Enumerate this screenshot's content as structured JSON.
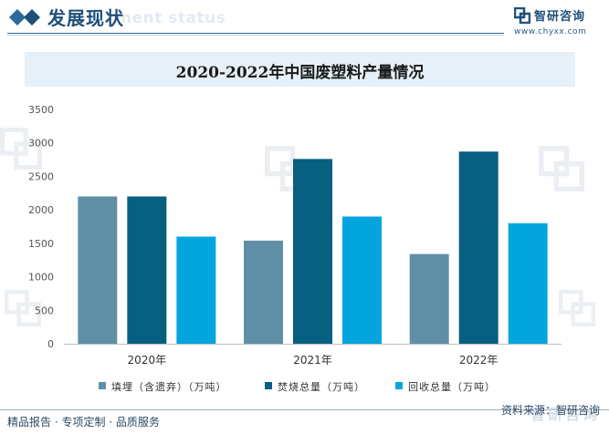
{
  "header": {
    "title": "发展现状",
    "watermark_text": "nent status"
  },
  "brand": {
    "name": "智研咨询",
    "url": "www.chyxx.com",
    "color": "#1f4f7a"
  },
  "colors": {
    "series_1": "#5f8fa6",
    "series_2": "#075f81",
    "series_3": "#04a5df",
    "title_bg": "#e5f0f8",
    "header_accent": "#1f4f7a"
  },
  "chart_data": {
    "type": "bar",
    "title": "2020-2022年中国废塑料产量情况",
    "categories": [
      "2020年",
      "2021年",
      "2022年"
    ],
    "series": [
      {
        "name": "填埋（含遗弃）（万吨）",
        "values": [
          2200,
          1540,
          1340
        ]
      },
      {
        "name": "焚烧总量（万吨）",
        "values": [
          2200,
          2760,
          2870
        ]
      },
      {
        "name": "回收总量（万吨）",
        "values": [
          1600,
          1900,
          1800
        ]
      }
    ],
    "ylim": [
      0,
      3500
    ],
    "yticks": [
      0,
      500,
      1000,
      1500,
      2000,
      2500,
      3000,
      3500
    ],
    "xlabel": "",
    "ylabel": "",
    "grid": false,
    "legend_position": "bottom"
  },
  "legend": {
    "items": [
      {
        "label": "填埋（含遗弃）（万吨）",
        "icon": "square-swatch"
      },
      {
        "label": "焚烧总量（万吨）",
        "icon": "square-swatch"
      },
      {
        "label": "回收总量（万吨）",
        "icon": "square-swatch"
      }
    ]
  },
  "footer": {
    "left": "精品报告 · 专项定制 · 品质服务",
    "right": "资料来源：智研咨询",
    "watermark_name": "智研咨询"
  }
}
